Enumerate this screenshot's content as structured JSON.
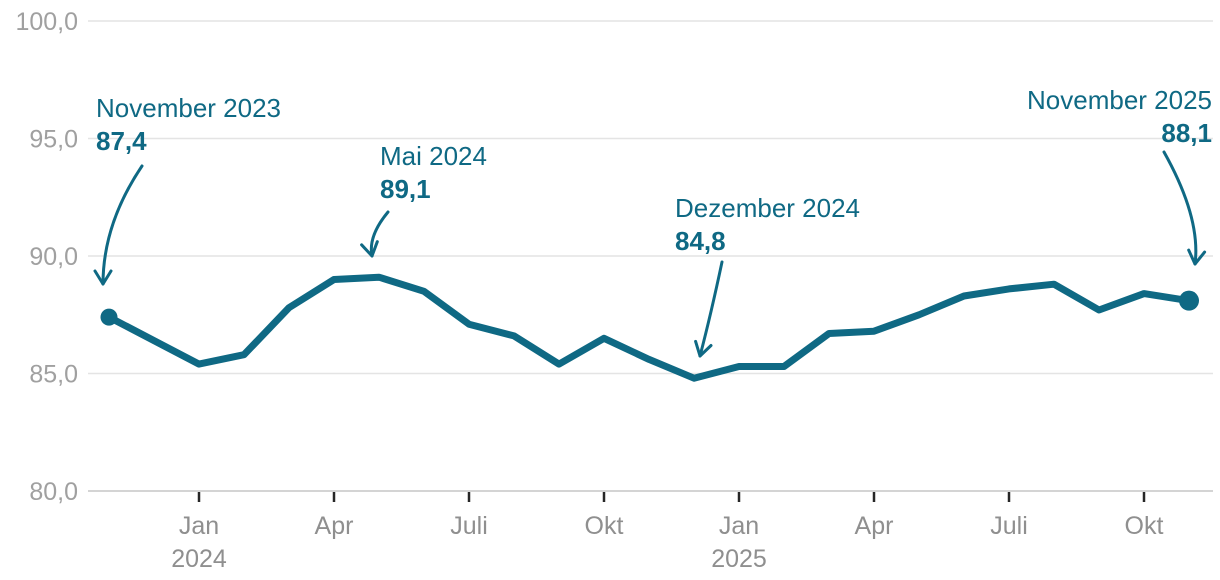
{
  "chart_data": {
    "type": "line",
    "title": "",
    "xlabel": "",
    "ylabel": "",
    "x": [
      "Nov 2023",
      "Dez 2023",
      "Jan 2024",
      "Feb 2024",
      "Mär 2024",
      "Apr 2024",
      "Mai 2024",
      "Jun 2024",
      "Juli 2024",
      "Aug 2024",
      "Sep 2024",
      "Okt 2024",
      "Nov 2024",
      "Dez 2024",
      "Jan 2025",
      "Feb 2025",
      "Mär 2025",
      "Apr 2025",
      "Mai 2025",
      "Jun 2025",
      "Juli 2025",
      "Aug 2025",
      "Sep 2025",
      "Okt 2025",
      "Nov 2025"
    ],
    "values": [
      87.4,
      86.4,
      85.4,
      85.8,
      87.8,
      89.0,
      89.1,
      88.5,
      87.1,
      86.6,
      85.4,
      86.5,
      85.6,
      84.8,
      85.3,
      85.3,
      86.7,
      86.8,
      87.5,
      88.3,
      88.6,
      88.8,
      87.7,
      88.4,
      88.1
    ],
    "ylim": [
      80,
      100
    ],
    "grid": true,
    "legend_position": "none",
    "yticks": [
      {
        "value": 100,
        "label": "100,0"
      },
      {
        "value": 95,
        "label": "95,0"
      },
      {
        "value": 90,
        "label": "90,0"
      },
      {
        "value": 85,
        "label": "85,0"
      },
      {
        "value": 80,
        "label": "80,0"
      }
    ],
    "xticks": [
      {
        "index": 2,
        "label": "Jan",
        "sub": "2024"
      },
      {
        "index": 5,
        "label": "Apr",
        "sub": ""
      },
      {
        "index": 8,
        "label": "Juli",
        "sub": ""
      },
      {
        "index": 11,
        "label": "Okt",
        "sub": ""
      },
      {
        "index": 14,
        "label": "Jan",
        "sub": "2025"
      },
      {
        "index": 17,
        "label": "Apr",
        "sub": ""
      },
      {
        "index": 20,
        "label": "Juli",
        "sub": ""
      },
      {
        "index": 23,
        "label": "Okt",
        "sub": ""
      }
    ],
    "annotations": [
      {
        "label": "November 2023",
        "value": "87,4",
        "point_index": 0
      },
      {
        "label": "Mai 2024",
        "value": "89,1",
        "point_index": 6
      },
      {
        "label": "Dezember 2024",
        "value": "84,8",
        "point_index": 13
      },
      {
        "label": "November 2025",
        "value": "88,1",
        "point_index": 24
      }
    ],
    "colors": {
      "line": "#0f6984",
      "annotation_text": "#0f6984",
      "axis_label": "#a0a0a0",
      "x_axis_label": "#8f8f8f",
      "gridline": "#e4e4e4",
      "baseline": "#d4d4d4",
      "tick": "#262626",
      "background": "#ffffff"
    }
  }
}
